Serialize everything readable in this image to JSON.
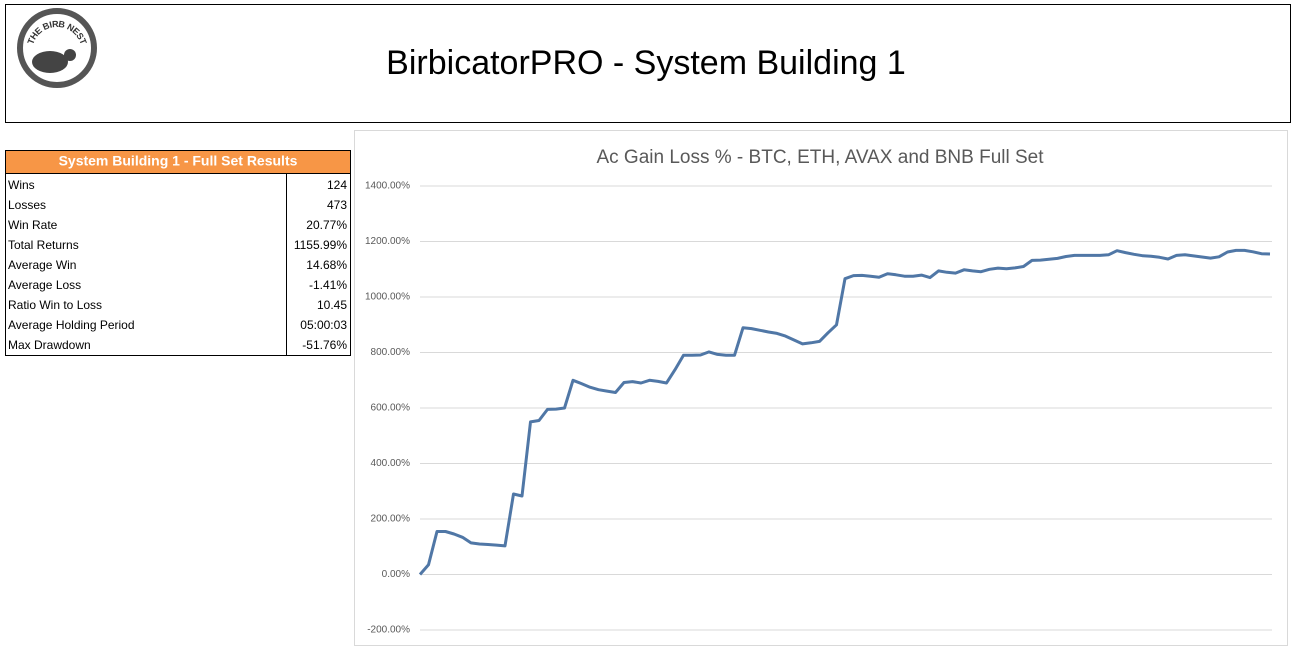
{
  "header": {
    "title": "BirbicatorPRO - System Building 1",
    "logo_text": "THE BIRB NEST"
  },
  "table": {
    "title": "System Building 1 - Full Set Results",
    "rows": [
      [
        "Wins",
        "124"
      ],
      [
        "Losses",
        "473"
      ],
      [
        "Win Rate",
        "20.77%"
      ],
      [
        "Total Returns",
        "1155.99%"
      ],
      [
        "Average Win",
        "14.68%"
      ],
      [
        "Average Loss",
        "-1.41%"
      ],
      [
        "Ratio Win to Loss",
        "10.45"
      ],
      [
        "Average Holding Period",
        "05:00:03"
      ],
      [
        "Max Drawdown",
        "-51.76%"
      ]
    ]
  },
  "chart_data": {
    "type": "line",
    "title": "Ac Gain Loss % - BTC, ETH, AVAX and BNB Full Set",
    "color": "#5077a6",
    "grid": true,
    "ylim": [
      -200,
      1400
    ],
    "yticks": [
      {
        "value": -200,
        "label": "-200.00%"
      },
      {
        "value": 0,
        "label": "0.00%"
      },
      {
        "value": 200,
        "label": "200.00%"
      },
      {
        "value": 400,
        "label": "400.00%"
      },
      {
        "value": 600,
        "label": "600.00%"
      },
      {
        "value": 800,
        "label": "800.00%"
      },
      {
        "value": 1000,
        "label": "1000.00%"
      },
      {
        "value": 1200,
        "label": "1200.00%"
      },
      {
        "value": 1400,
        "label": "1400.00%"
      }
    ],
    "values": [
      0,
      35,
      155,
      155,
      146,
      134,
      114,
      110,
      108,
      106,
      103,
      290,
      283,
      550,
      555,
      595,
      596,
      600,
      700,
      688,
      675,
      666,
      661,
      656,
      692,
      695,
      690,
      700,
      696,
      690,
      738,
      790,
      790,
      791,
      802,
      793,
      790,
      790,
      889,
      886,
      880,
      874,
      869,
      859,
      845,
      831,
      835,
      840,
      871,
      900,
      1066,
      1077,
      1078,
      1075,
      1071,
      1084,
      1080,
      1075,
      1075,
      1079,
      1070,
      1094,
      1089,
      1086,
      1098,
      1094,
      1091,
      1100,
      1104,
      1102,
      1105,
      1110,
      1132,
      1133,
      1136,
      1139,
      1146,
      1150,
      1150,
      1150,
      1150,
      1152,
      1167,
      1160,
      1154,
      1149,
      1147,
      1143,
      1137,
      1150,
      1152,
      1148,
      1144,
      1140,
      1145,
      1162,
      1168,
      1168,
      1163,
      1156,
      1155
    ]
  }
}
